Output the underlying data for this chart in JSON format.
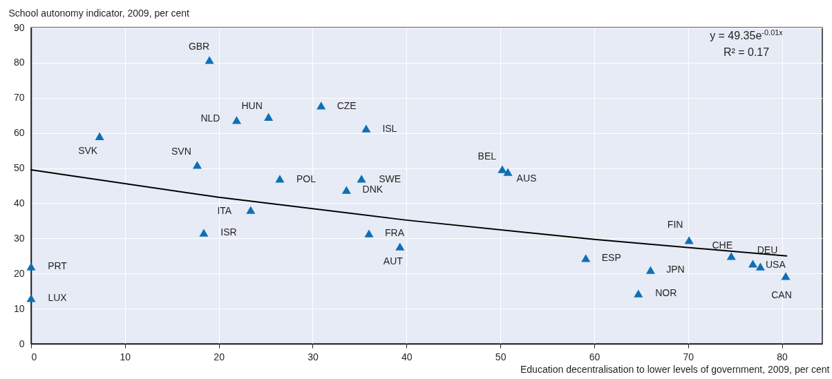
{
  "chart_data": {
    "type": "scatter",
    "xlabel": "Education decentralisation to lower levels of government, 2009, per cent",
    "ylabel": "School autonomy indicator, 2009, per cent",
    "xlim": [
      0,
      84.3
    ],
    "ylim": [
      0,
      90
    ],
    "xticks": [
      0,
      10,
      20,
      30,
      40,
      50,
      60,
      70,
      80
    ],
    "yticks": [
      0,
      10,
      20,
      30,
      40,
      50,
      60,
      70,
      80,
      90
    ],
    "grid": true,
    "series": [
      {
        "marker": "triangle",
        "color": "#0f6fb5",
        "x": [
          0,
          0,
          7.3,
          19.0,
          21.9,
          25.3,
          17.7,
          30.9,
          35.7,
          26.5,
          35.2,
          33.6,
          23.4,
          18.4,
          36.0,
          39.3,
          50.2,
          50.8,
          59.1,
          70.1,
          74.6,
          76.9,
          77.7,
          66.0,
          64.7,
          80.4
        ],
        "values": [
          22.0,
          13.0,
          59.1,
          80.8,
          63.7,
          64.6,
          50.9,
          67.8,
          61.3,
          47.0,
          47.0,
          43.8,
          38.1,
          31.6,
          31.4,
          27.7,
          49.7,
          48.9,
          24.4,
          29.5,
          25.0,
          22.8,
          22.0,
          21.0,
          14.3,
          19.3
        ]
      },
      {
        "type": "line",
        "color": "#000000",
        "line_style": "solid",
        "x": [
          0,
          20,
          40,
          60,
          80.5
        ],
        "values": [
          49.5,
          41.7,
          35.2,
          29.7,
          25.0
        ]
      }
    ],
    "annotations": [
      {
        "text": "PRT",
        "x": 0,
        "y": 22.0
      },
      {
        "text": "LUX",
        "x": 0,
        "y": 13.0
      },
      {
        "text": "SVK",
        "x": 7.3,
        "y": 59.1
      },
      {
        "text": "GBR",
        "x": 19.0,
        "y": 80.8
      },
      {
        "text": "NLD",
        "x": 21.9,
        "y": 63.7
      },
      {
        "text": "HUN",
        "x": 25.3,
        "y": 64.6
      },
      {
        "text": "SVN",
        "x": 17.7,
        "y": 50.9
      },
      {
        "text": "CZE",
        "x": 30.9,
        "y": 67.8
      },
      {
        "text": "ISL",
        "x": 35.7,
        "y": 61.3
      },
      {
        "text": "POL",
        "x": 26.5,
        "y": 47.0
      },
      {
        "text": "SWE",
        "x": 35.2,
        "y": 47.0
      },
      {
        "text": "DNK",
        "x": 33.6,
        "y": 43.8
      },
      {
        "text": "ITA",
        "x": 23.4,
        "y": 38.1
      },
      {
        "text": "ISR",
        "x": 18.4,
        "y": 31.6
      },
      {
        "text": "FRA",
        "x": 36.0,
        "y": 31.4
      },
      {
        "text": "AUT",
        "x": 39.3,
        "y": 27.7
      },
      {
        "text": "BEL",
        "x": 50.2,
        "y": 49.7
      },
      {
        "text": "AUS",
        "x": 50.8,
        "y": 48.9
      },
      {
        "text": "ESP",
        "x": 59.1,
        "y": 24.4
      },
      {
        "text": "FIN",
        "x": 70.1,
        "y": 29.5
      },
      {
        "text": "CHE",
        "x": 74.6,
        "y": 25.0
      },
      {
        "text": "DEU",
        "x": 76.9,
        "y": 22.8
      },
      {
        "text": "USA",
        "x": 77.7,
        "y": 22.0
      },
      {
        "text": "JPN",
        "x": 66.0,
        "y": 21.0
      },
      {
        "text": "NOR",
        "x": 64.7,
        "y": 14.3
      },
      {
        "text": "CAN",
        "x": 80.4,
        "y": 19.3
      },
      "y = 49.35e$^{-0.01x}$",
      "R² = 0.17"
    ]
  }
}
